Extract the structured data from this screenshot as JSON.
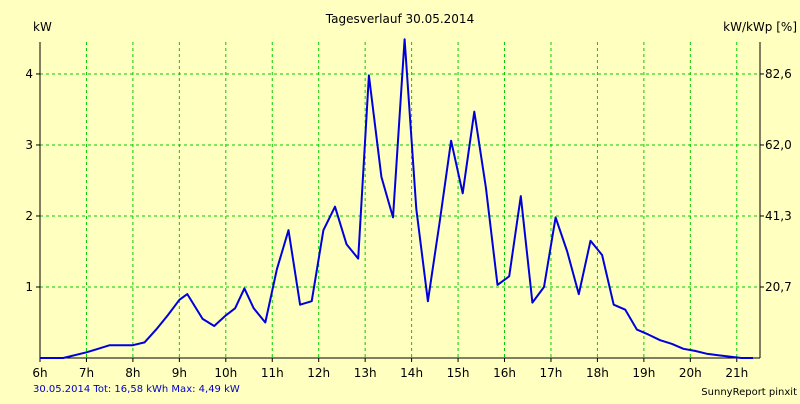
{
  "chart_data": {
    "type": "line",
    "title": "Tagesverlauf 30.05.2014",
    "ylabel_left": "kW",
    "ylabel_right": "kW/kWp [%]",
    "footer_left": "30.05.2014 Tot: 16,58 kWh Max: 4,49 kW",
    "footer_right": "SunnyReport pinxit",
    "x_ticks": [
      "6h",
      "7h",
      "8h",
      "9h",
      "10h",
      "11h",
      "12h",
      "13h",
      "14h",
      "15h",
      "16h",
      "17h",
      "18h",
      "19h",
      "20h",
      "21h"
    ],
    "x_tick_values": [
      6,
      7,
      8,
      9,
      10,
      11,
      12,
      13,
      14,
      15,
      16,
      17,
      18,
      19,
      20,
      21
    ],
    "xlim": [
      6,
      21.5
    ],
    "ylim": [
      0,
      4.45
    ],
    "y_ticks_left": [
      {
        "value": 1,
        "label": "1"
      },
      {
        "value": 2,
        "label": "2"
      },
      {
        "value": 3,
        "label": "3"
      },
      {
        "value": 4,
        "label": "4"
      }
    ],
    "y_ticks_right": [
      {
        "value": 1,
        "label": "20,7"
      },
      {
        "value": 2,
        "label": "41,3"
      },
      {
        "value": 3,
        "label": "62,0"
      },
      {
        "value": 4,
        "label": "82,6"
      }
    ],
    "grid": true,
    "colors": {
      "background": "#ffffc0",
      "grid": "#00cc00",
      "line": "#0000dd",
      "text": "#000000",
      "footer_left": "#0000cc"
    },
    "series": [
      {
        "x": [
          6.0,
          6.5,
          7.0,
          7.25,
          7.5,
          7.75,
          8.0,
          8.25,
          8.5,
          8.75,
          9.0,
          9.17,
          9.5,
          9.75,
          10.0,
          10.2,
          10.4,
          10.6,
          10.85,
          11.1,
          11.35,
          11.6,
          11.85,
          12.1,
          12.35,
          12.6,
          12.85,
          13.08,
          13.35,
          13.6,
          13.85,
          14.1,
          14.35,
          14.6,
          14.85,
          15.1,
          15.35,
          15.6,
          15.85,
          16.1,
          16.35,
          16.6,
          16.85,
          17.1,
          17.35,
          17.6,
          17.85,
          18.1,
          18.35,
          18.6,
          18.85,
          19.1,
          19.35,
          19.6,
          19.85,
          20.1,
          20.35,
          20.6,
          20.85,
          21.1,
          21.35
        ],
        "y": [
          0.0,
          0.0,
          0.08,
          0.13,
          0.18,
          0.18,
          0.18,
          0.22,
          0.4,
          0.6,
          0.82,
          0.9,
          0.55,
          0.45,
          0.6,
          0.7,
          0.98,
          0.7,
          0.5,
          1.25,
          1.8,
          0.75,
          0.8,
          1.8,
          2.13,
          1.6,
          1.4,
          3.98,
          2.55,
          1.98,
          4.49,
          2.1,
          0.8,
          1.9,
          3.06,
          2.32,
          3.47,
          2.4,
          1.03,
          1.15,
          2.28,
          0.78,
          1.0,
          1.98,
          1.5,
          0.9,
          1.65,
          1.45,
          0.75,
          0.68,
          0.4,
          0.33,
          0.25,
          0.2,
          0.13,
          0.1,
          0.06,
          0.04,
          0.02,
          0.0,
          0.0
        ]
      }
    ]
  }
}
